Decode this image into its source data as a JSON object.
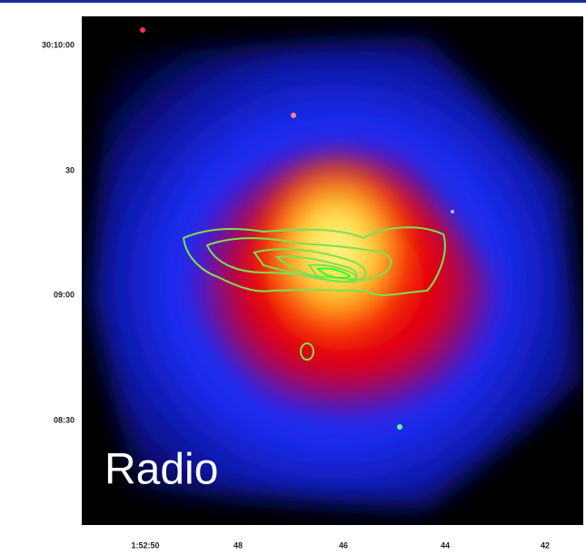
{
  "image": {
    "overlay_label": "Radio",
    "y_tick_labels": [
      "30:10:00",
      "30",
      "09:00",
      "08:30"
    ],
    "x_tick_labels": [
      "1:52:50",
      "48",
      "46",
      "44",
      "42"
    ]
  }
}
